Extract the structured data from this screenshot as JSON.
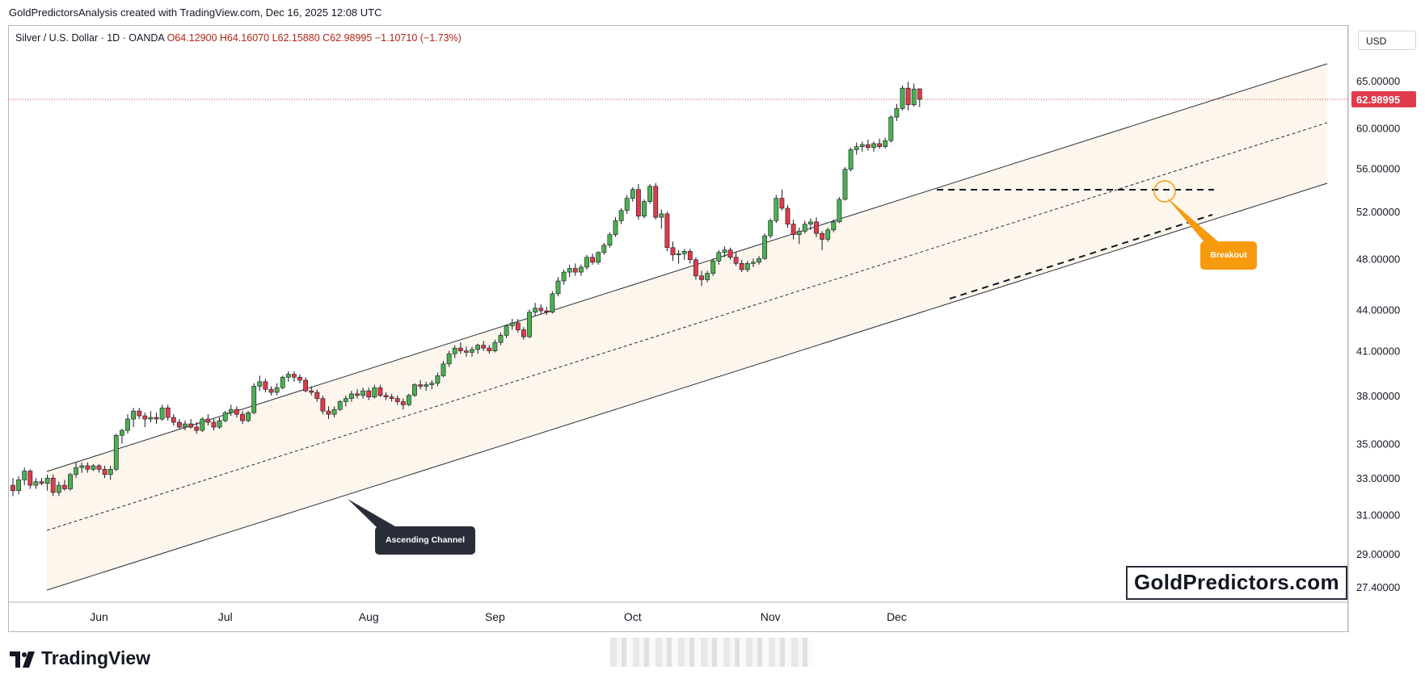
{
  "header": {
    "credit": "GoldPredictorsAnalysis created with TradingView.com, Dec 16, 2025 12:08 UTC"
  },
  "symbol": {
    "name": "Silver / U.S. Dollar · 1D · OANDA",
    "open": "O64.12900",
    "high": "H64.16070",
    "low": "L62.15880",
    "close": "C62.98995",
    "change": "−1.10710 (−1.73%)"
  },
  "currency": "USD",
  "watermark": "GoldPredictors.com",
  "branding": "TradingView",
  "colors": {
    "up": "#4caf50",
    "down": "#e03b4b",
    "channel_fill": "#fdf6ed",
    "price_tag": "#e03b4b",
    "breakout": "#f79a0e",
    "dark_callout": "#2a2e39"
  },
  "chart_data": {
    "type": "candlestick",
    "title": "Silver / U.S. Dollar · 1D · OANDA",
    "y_scale": "log",
    "ylim": [
      26.7,
      71.5
    ],
    "y_ticks": [
      "65.00000",
      "60.00000",
      "56.00000",
      "52.00000",
      "48.00000",
      "44.00000",
      "41.00000",
      "38.00000",
      "35.00000",
      "33.00000",
      "31.00000",
      "29.00000",
      "27.40000"
    ],
    "x_ticks": [
      "Jun",
      "Jul",
      "Aug",
      "Sep",
      "Oct",
      "Nov",
      "Dec"
    ],
    "last_price": "62.98995",
    "candles": [
      {
        "o": 32.6,
        "h": 33.0,
        "l": 32.0,
        "c": 32.3
      },
      {
        "o": 32.3,
        "h": 33.1,
        "l": 32.1,
        "c": 32.9
      },
      {
        "o": 32.9,
        "h": 33.6,
        "l": 32.6,
        "c": 33.4
      },
      {
        "o": 33.4,
        "h": 33.5,
        "l": 32.4,
        "c": 32.6
      },
      {
        "o": 32.6,
        "h": 33.0,
        "l": 32.4,
        "c": 32.8
      },
      {
        "o": 32.8,
        "h": 33.0,
        "l": 32.6,
        "c": 32.7
      },
      {
        "o": 32.7,
        "h": 33.2,
        "l": 32.3,
        "c": 33.0
      },
      {
        "o": 33.0,
        "h": 33.2,
        "l": 32.0,
        "c": 32.2
      },
      {
        "o": 32.2,
        "h": 32.8,
        "l": 32.0,
        "c": 32.6
      },
      {
        "o": 32.6,
        "h": 32.9,
        "l": 32.3,
        "c": 32.4
      },
      {
        "o": 32.4,
        "h": 33.3,
        "l": 32.3,
        "c": 33.2
      },
      {
        "o": 33.2,
        "h": 33.9,
        "l": 33.0,
        "c": 33.6
      },
      {
        "o": 33.6,
        "h": 33.9,
        "l": 33.3,
        "c": 33.7
      },
      {
        "o": 33.7,
        "h": 33.9,
        "l": 33.3,
        "c": 33.5
      },
      {
        "o": 33.5,
        "h": 33.8,
        "l": 33.4,
        "c": 33.7
      },
      {
        "o": 33.7,
        "h": 33.8,
        "l": 33.3,
        "c": 33.5
      },
      {
        "o": 33.5,
        "h": 33.7,
        "l": 33.0,
        "c": 33.2
      },
      {
        "o": 33.2,
        "h": 33.7,
        "l": 32.9,
        "c": 33.5
      },
      {
        "o": 33.5,
        "h": 35.6,
        "l": 33.4,
        "c": 35.5
      },
      {
        "o": 35.5,
        "h": 35.9,
        "l": 35.0,
        "c": 35.8
      },
      {
        "o": 35.8,
        "h": 36.8,
        "l": 35.6,
        "c": 36.5
      },
      {
        "o": 36.5,
        "h": 37.2,
        "l": 36.0,
        "c": 37.0
      },
      {
        "o": 37.0,
        "h": 37.2,
        "l": 36.5,
        "c": 36.7
      },
      {
        "o": 36.7,
        "h": 36.9,
        "l": 36.0,
        "c": 36.5
      },
      {
        "o": 36.5,
        "h": 37.0,
        "l": 36.3,
        "c": 36.6
      },
      {
        "o": 36.6,
        "h": 36.9,
        "l": 36.2,
        "c": 36.5
      },
      {
        "o": 36.5,
        "h": 37.4,
        "l": 36.4,
        "c": 37.2
      },
      {
        "o": 37.2,
        "h": 37.4,
        "l": 36.4,
        "c": 36.6
      },
      {
        "o": 36.6,
        "h": 36.8,
        "l": 36.1,
        "c": 36.3
      },
      {
        "o": 36.3,
        "h": 36.5,
        "l": 35.9,
        "c": 36.0
      },
      {
        "o": 36.0,
        "h": 36.4,
        "l": 35.8,
        "c": 36.2
      },
      {
        "o": 36.2,
        "h": 36.5,
        "l": 35.9,
        "c": 36.0
      },
      {
        "o": 36.0,
        "h": 36.3,
        "l": 35.6,
        "c": 35.8
      },
      {
        "o": 35.8,
        "h": 36.6,
        "l": 35.7,
        "c": 36.5
      },
      {
        "o": 36.5,
        "h": 36.8,
        "l": 36.1,
        "c": 36.3
      },
      {
        "o": 36.3,
        "h": 36.5,
        "l": 35.8,
        "c": 36.0
      },
      {
        "o": 36.0,
        "h": 36.6,
        "l": 35.9,
        "c": 36.4
      },
      {
        "o": 36.4,
        "h": 37.0,
        "l": 36.3,
        "c": 36.9
      },
      {
        "o": 36.9,
        "h": 37.4,
        "l": 36.7,
        "c": 37.1
      },
      {
        "o": 37.1,
        "h": 37.3,
        "l": 36.6,
        "c": 36.8
      },
      {
        "o": 36.8,
        "h": 37.0,
        "l": 36.2,
        "c": 36.4
      },
      {
        "o": 36.4,
        "h": 37.0,
        "l": 36.3,
        "c": 36.9
      },
      {
        "o": 36.9,
        "h": 38.8,
        "l": 36.8,
        "c": 38.6
      },
      {
        "o": 38.6,
        "h": 39.3,
        "l": 38.3,
        "c": 38.9
      },
      {
        "o": 38.9,
        "h": 39.1,
        "l": 38.2,
        "c": 38.4
      },
      {
        "o": 38.4,
        "h": 38.6,
        "l": 38.0,
        "c": 38.2
      },
      {
        "o": 38.2,
        "h": 38.8,
        "l": 38.0,
        "c": 38.5
      },
      {
        "o": 38.5,
        "h": 39.3,
        "l": 38.4,
        "c": 39.2
      },
      {
        "o": 39.2,
        "h": 39.6,
        "l": 38.9,
        "c": 39.4
      },
      {
        "o": 39.4,
        "h": 39.6,
        "l": 38.9,
        "c": 39.2
      },
      {
        "o": 39.2,
        "h": 39.4,
        "l": 38.8,
        "c": 39.0
      },
      {
        "o": 39.0,
        "h": 39.2,
        "l": 38.2,
        "c": 38.3
      },
      {
        "o": 38.3,
        "h": 38.6,
        "l": 38.0,
        "c": 38.2
      },
      {
        "o": 38.2,
        "h": 38.4,
        "l": 37.6,
        "c": 37.8
      },
      {
        "o": 37.8,
        "h": 38.0,
        "l": 36.8,
        "c": 37.0
      },
      {
        "o": 37.0,
        "h": 37.3,
        "l": 36.5,
        "c": 36.8
      },
      {
        "o": 36.8,
        "h": 37.3,
        "l": 36.6,
        "c": 37.1
      },
      {
        "o": 37.1,
        "h": 37.7,
        "l": 37.0,
        "c": 37.6
      },
      {
        "o": 37.6,
        "h": 38.0,
        "l": 37.3,
        "c": 37.8
      },
      {
        "o": 37.8,
        "h": 38.3,
        "l": 37.6,
        "c": 38.1
      },
      {
        "o": 38.1,
        "h": 38.4,
        "l": 37.8,
        "c": 38.0
      },
      {
        "o": 38.0,
        "h": 38.5,
        "l": 37.8,
        "c": 38.3
      },
      {
        "o": 38.3,
        "h": 38.5,
        "l": 37.7,
        "c": 37.9
      },
      {
        "o": 37.9,
        "h": 38.7,
        "l": 37.8,
        "c": 38.5
      },
      {
        "o": 38.5,
        "h": 38.7,
        "l": 37.9,
        "c": 38.0
      },
      {
        "o": 38.0,
        "h": 38.2,
        "l": 37.7,
        "c": 37.9
      },
      {
        "o": 37.9,
        "h": 38.1,
        "l": 37.6,
        "c": 37.8
      },
      {
        "o": 37.8,
        "h": 38.0,
        "l": 37.4,
        "c": 37.6
      },
      {
        "o": 37.6,
        "h": 37.8,
        "l": 37.1,
        "c": 37.4
      },
      {
        "o": 37.4,
        "h": 38.1,
        "l": 37.3,
        "c": 38.0
      },
      {
        "o": 38.0,
        "h": 38.8,
        "l": 37.9,
        "c": 38.7
      },
      {
        "o": 38.7,
        "h": 39.0,
        "l": 38.4,
        "c": 38.6
      },
      {
        "o": 38.6,
        "h": 38.9,
        "l": 38.3,
        "c": 38.7
      },
      {
        "o": 38.7,
        "h": 39.0,
        "l": 38.4,
        "c": 38.8
      },
      {
        "o": 38.8,
        "h": 39.5,
        "l": 38.6,
        "c": 39.3
      },
      {
        "o": 39.3,
        "h": 40.3,
        "l": 39.2,
        "c": 40.1
      },
      {
        "o": 40.1,
        "h": 41.0,
        "l": 39.9,
        "c": 40.8
      },
      {
        "o": 40.8,
        "h": 41.4,
        "l": 40.5,
        "c": 41.2
      },
      {
        "o": 41.2,
        "h": 41.6,
        "l": 40.8,
        "c": 41.0
      },
      {
        "o": 41.0,
        "h": 41.3,
        "l": 40.6,
        "c": 40.9
      },
      {
        "o": 40.9,
        "h": 41.3,
        "l": 40.6,
        "c": 41.1
      },
      {
        "o": 41.1,
        "h": 41.5,
        "l": 40.8,
        "c": 41.4
      },
      {
        "o": 41.4,
        "h": 41.7,
        "l": 41.0,
        "c": 41.2
      },
      {
        "o": 41.2,
        "h": 41.4,
        "l": 40.8,
        "c": 41.0
      },
      {
        "o": 41.0,
        "h": 41.8,
        "l": 40.9,
        "c": 41.6
      },
      {
        "o": 41.6,
        "h": 42.3,
        "l": 41.4,
        "c": 42.1
      },
      {
        "o": 42.1,
        "h": 42.9,
        "l": 41.9,
        "c": 42.8
      },
      {
        "o": 42.8,
        "h": 43.3,
        "l": 42.5,
        "c": 43.0
      },
      {
        "o": 43.0,
        "h": 43.3,
        "l": 42.3,
        "c": 42.5
      },
      {
        "o": 42.5,
        "h": 42.7,
        "l": 41.8,
        "c": 42.0
      },
      {
        "o": 42.0,
        "h": 44.0,
        "l": 41.9,
        "c": 43.8
      },
      {
        "o": 43.8,
        "h": 44.5,
        "l": 43.5,
        "c": 44.1
      },
      {
        "o": 44.1,
        "h": 44.4,
        "l": 43.7,
        "c": 43.9
      },
      {
        "o": 43.9,
        "h": 44.2,
        "l": 43.6,
        "c": 43.8
      },
      {
        "o": 43.8,
        "h": 45.4,
        "l": 43.7,
        "c": 45.2
      },
      {
        "o": 45.2,
        "h": 46.5,
        "l": 45.0,
        "c": 46.2
      },
      {
        "o": 46.2,
        "h": 47.1,
        "l": 45.9,
        "c": 46.9
      },
      {
        "o": 46.9,
        "h": 47.5,
        "l": 46.5,
        "c": 47.2
      },
      {
        "o": 47.2,
        "h": 47.6,
        "l": 46.6,
        "c": 46.9
      },
      {
        "o": 46.9,
        "h": 47.5,
        "l": 46.6,
        "c": 47.3
      },
      {
        "o": 47.3,
        "h": 48.3,
        "l": 47.1,
        "c": 48.1
      },
      {
        "o": 48.1,
        "h": 48.4,
        "l": 47.5,
        "c": 47.7
      },
      {
        "o": 47.7,
        "h": 48.6,
        "l": 47.5,
        "c": 48.5
      },
      {
        "o": 48.5,
        "h": 49.3,
        "l": 48.3,
        "c": 49.1
      },
      {
        "o": 49.1,
        "h": 50.2,
        "l": 48.9,
        "c": 50.0
      },
      {
        "o": 50.0,
        "h": 51.5,
        "l": 49.8,
        "c": 51.2
      },
      {
        "o": 51.2,
        "h": 52.3,
        "l": 50.9,
        "c": 52.1
      },
      {
        "o": 52.1,
        "h": 53.5,
        "l": 51.8,
        "c": 53.2
      },
      {
        "o": 53.2,
        "h": 54.2,
        "l": 52.9,
        "c": 54.0
      },
      {
        "o": 54.0,
        "h": 54.5,
        "l": 51.3,
        "c": 51.6
      },
      {
        "o": 51.6,
        "h": 53.1,
        "l": 51.4,
        "c": 52.9
      },
      {
        "o": 52.9,
        "h": 54.5,
        "l": 52.7,
        "c": 54.3
      },
      {
        "o": 54.3,
        "h": 54.6,
        "l": 51.3,
        "c": 51.5
      },
      {
        "o": 51.5,
        "h": 52.2,
        "l": 50.5,
        "c": 51.8
      },
      {
        "o": 51.8,
        "h": 52.0,
        "l": 48.6,
        "c": 48.9
      },
      {
        "o": 48.9,
        "h": 49.4,
        "l": 47.8,
        "c": 48.3
      },
      {
        "o": 48.3,
        "h": 48.7,
        "l": 47.6,
        "c": 48.4
      },
      {
        "o": 48.4,
        "h": 48.8,
        "l": 47.9,
        "c": 48.6
      },
      {
        "o": 48.6,
        "h": 48.8,
        "l": 47.6,
        "c": 47.9
      },
      {
        "o": 47.9,
        "h": 48.1,
        "l": 46.3,
        "c": 46.6
      },
      {
        "o": 46.6,
        "h": 47.0,
        "l": 45.8,
        "c": 46.3
      },
      {
        "o": 46.3,
        "h": 47.0,
        "l": 46.1,
        "c": 46.8
      },
      {
        "o": 46.8,
        "h": 48.0,
        "l": 46.6,
        "c": 47.8
      },
      {
        "o": 47.8,
        "h": 48.7,
        "l": 47.5,
        "c": 48.5
      },
      {
        "o": 48.5,
        "h": 49.0,
        "l": 48.1,
        "c": 48.7
      },
      {
        "o": 48.7,
        "h": 48.9,
        "l": 47.9,
        "c": 48.1
      },
      {
        "o": 48.1,
        "h": 48.5,
        "l": 47.4,
        "c": 47.6
      },
      {
        "o": 47.6,
        "h": 47.9,
        "l": 46.9,
        "c": 47.1
      },
      {
        "o": 47.1,
        "h": 47.8,
        "l": 46.9,
        "c": 47.6
      },
      {
        "o": 47.6,
        "h": 48.0,
        "l": 47.3,
        "c": 47.7
      },
      {
        "o": 47.7,
        "h": 48.2,
        "l": 47.5,
        "c": 48.0
      },
      {
        "o": 48.0,
        "h": 50.1,
        "l": 47.9,
        "c": 49.9
      },
      {
        "o": 49.9,
        "h": 51.4,
        "l": 49.7,
        "c": 51.2
      },
      {
        "o": 51.2,
        "h": 53.5,
        "l": 51.0,
        "c": 53.2
      },
      {
        "o": 53.2,
        "h": 54.0,
        "l": 52.1,
        "c": 52.3
      },
      {
        "o": 52.3,
        "h": 52.6,
        "l": 50.6,
        "c": 50.9
      },
      {
        "o": 50.9,
        "h": 51.3,
        "l": 49.6,
        "c": 50.0
      },
      {
        "o": 50.0,
        "h": 50.6,
        "l": 49.2,
        "c": 50.3
      },
      {
        "o": 50.3,
        "h": 51.2,
        "l": 50.1,
        "c": 50.9
      },
      {
        "o": 50.9,
        "h": 51.4,
        "l": 50.4,
        "c": 51.1
      },
      {
        "o": 51.1,
        "h": 51.5,
        "l": 49.8,
        "c": 50.1
      },
      {
        "o": 50.1,
        "h": 50.3,
        "l": 48.7,
        "c": 49.6
      },
      {
        "o": 49.6,
        "h": 50.6,
        "l": 49.4,
        "c": 50.4
      },
      {
        "o": 50.4,
        "h": 51.3,
        "l": 50.2,
        "c": 51.1
      },
      {
        "o": 51.1,
        "h": 53.3,
        "l": 51.0,
        "c": 53.1
      },
      {
        "o": 53.1,
        "h": 56.1,
        "l": 53.0,
        "c": 55.9
      },
      {
        "o": 55.9,
        "h": 58.0,
        "l": 55.7,
        "c": 57.8
      },
      {
        "o": 57.8,
        "h": 58.5,
        "l": 57.3,
        "c": 58.1
      },
      {
        "o": 58.1,
        "h": 58.6,
        "l": 57.6,
        "c": 58.3
      },
      {
        "o": 58.3,
        "h": 58.8,
        "l": 57.7,
        "c": 58.0
      },
      {
        "o": 58.0,
        "h": 58.6,
        "l": 57.6,
        "c": 58.4
      },
      {
        "o": 58.4,
        "h": 58.9,
        "l": 57.9,
        "c": 58.1
      },
      {
        "o": 58.1,
        "h": 59.0,
        "l": 57.9,
        "c": 58.7
      },
      {
        "o": 58.7,
        "h": 61.3,
        "l": 58.5,
        "c": 61.1
      },
      {
        "o": 61.1,
        "h": 62.5,
        "l": 60.7,
        "c": 62.0
      },
      {
        "o": 62.0,
        "h": 64.5,
        "l": 61.8,
        "c": 64.2
      },
      {
        "o": 64.2,
        "h": 64.9,
        "l": 61.8,
        "c": 62.4
      },
      {
        "o": 62.4,
        "h": 64.7,
        "l": 62.2,
        "c": 64.1
      },
      {
        "o": 64.129,
        "h": 64.1607,
        "l": 62.1588,
        "c": 62.98995
      }
    ]
  },
  "annotations": {
    "channel_label": "Ascending Channel",
    "breakout_label": "Breakout"
  }
}
